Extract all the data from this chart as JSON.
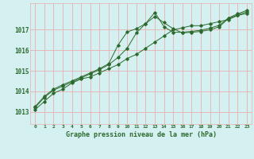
{
  "title": "Graphe pression niveau de la mer (hPa)",
  "background_color": "#d4f0f0",
  "grid_color": "#e8b0b0",
  "line_color": "#2d6a2d",
  "x_labels": [
    "0",
    "1",
    "2",
    "3",
    "4",
    "5",
    "6",
    "7",
    "8",
    "9",
    "10",
    "11",
    "12",
    "13",
    "14",
    "15",
    "16",
    "17",
    "18",
    "19",
    "20",
    "21",
    "22",
    "23"
  ],
  "yticks": [
    1013,
    1014,
    1015,
    1016,
    1017
  ],
  "ylim": [
    1012.4,
    1018.3
  ],
  "xlim": [
    -0.5,
    23.5
  ],
  "series": [
    [
      1013.1,
      1013.5,
      1013.9,
      1014.1,
      1014.4,
      1014.6,
      1014.7,
      1014.9,
      1015.1,
      1015.3,
      1015.6,
      1015.8,
      1016.1,
      1016.4,
      1016.7,
      1017.0,
      1017.1,
      1017.2,
      1017.2,
      1017.3,
      1017.4,
      1017.5,
      1017.7,
      1017.8
    ],
    [
      1013.2,
      1013.7,
      1014.05,
      1014.25,
      1014.45,
      1014.65,
      1014.85,
      1015.05,
      1015.3,
      1015.65,
      1016.1,
      1016.85,
      1017.3,
      1017.65,
      1017.35,
      1017.05,
      1016.85,
      1016.88,
      1016.92,
      1017.0,
      1017.15,
      1017.55,
      1017.72,
      1017.88
    ],
    [
      1013.25,
      1013.75,
      1014.1,
      1014.32,
      1014.5,
      1014.7,
      1014.9,
      1015.1,
      1015.35,
      1016.25,
      1016.9,
      1017.05,
      1017.3,
      1017.85,
      1017.15,
      1016.88,
      1016.88,
      1016.92,
      1016.98,
      1017.08,
      1017.22,
      1017.58,
      1017.78,
      1017.95
    ]
  ]
}
